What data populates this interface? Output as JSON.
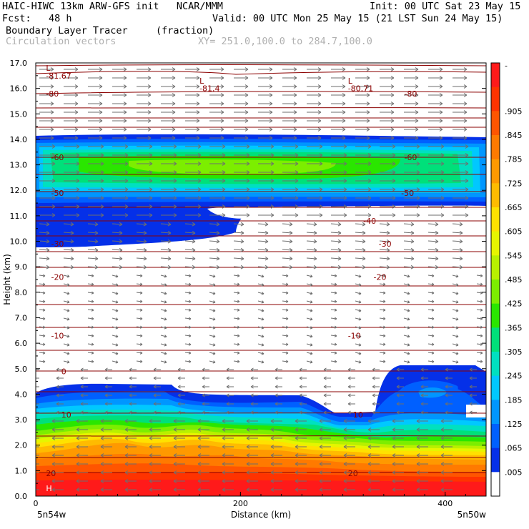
{
  "header": {
    "line1_left": "HAIC-HIWC 13km ARW-GFS init   NCAR/MMM",
    "line1_right": "Init: 00 UTC Sat 23 May 15",
    "line2_left": "Fcst:   48 h",
    "line2_right": "Valid: 00 UTC Mon 25 May 15 (21 LST Sun 24 May 15)",
    "field_name": "Boundary Layer Tracer",
    "field_units": "(fraction)",
    "vector_label": "Circulation vectors",
    "xsection_label": "XY= 251.0,100.0 to 284.7,100.0"
  },
  "chart_data": {
    "type": "heatmap",
    "title": "Boundary Layer Tracer",
    "ylabel": "Height (km)",
    "xlabel": "Distance (km)",
    "xlim": [
      0,
      440
    ],
    "ylim": [
      0,
      17
    ],
    "yticks": [
      "0.0",
      "1.0",
      "2.0",
      "3.0",
      "4.0",
      "5.0",
      "6.0",
      "7.0",
      "8.0",
      "9.0",
      "10.0",
      "11.0",
      "12.0",
      "13.0",
      "14.0",
      "15.0",
      "16.0",
      "17.0"
    ],
    "xticks": [
      "0",
      "200",
      "400"
    ],
    "x_end_labels": {
      "left": "5n54w",
      "right": "5n50w"
    },
    "colorbar": {
      "labels": [
        "-",
        ".905",
        ".845",
        ".785",
        ".725",
        ".665",
        ".605",
        ".545",
        ".485",
        ".425",
        ".365",
        ".305",
        ".245",
        ".185",
        ".125",
        ".065",
        ".005"
      ],
      "colors": [
        "#ff1a1a",
        "#ff3300",
        "#ff5500",
        "#ff7a00",
        "#ff9900",
        "#ffbb00",
        "#ffe100",
        "#e6f500",
        "#b8f000",
        "#7cee00",
        "#2ae600",
        "#00e07a",
        "#00e0c0",
        "#00c8ff",
        "#0096ff",
        "#0060ff",
        "#0530e8",
        "#ffffff"
      ]
    },
    "temperature_contour_labels": [
      {
        "text": "-81.67",
        "x": 10,
        "y": 16.5
      },
      {
        "text": "-80",
        "x": 10,
        "y": 15.8
      },
      {
        "text": "-81.4",
        "x": 160,
        "y": 16.0
      },
      {
        "text": "-80.71",
        "x": 305,
        "y": 16.0
      },
      {
        "text": "-80",
        "x": 360,
        "y": 15.8
      },
      {
        "text": "-60",
        "x": 15,
        "y": 13.3
      },
      {
        "text": "-60",
        "x": 360,
        "y": 13.3
      },
      {
        "text": "-50",
        "x": 15,
        "y": 11.9
      },
      {
        "text": "-50",
        "x": 357,
        "y": 11.9
      },
      {
        "text": "-40",
        "x": 320,
        "y": 10.8
      },
      {
        "text": "-30",
        "x": 15,
        "y": 9.9
      },
      {
        "text": "-30",
        "x": 335,
        "y": 9.9
      },
      {
        "text": "-20",
        "x": 15,
        "y": 8.6
      },
      {
        "text": "-20",
        "x": 330,
        "y": 8.6
      },
      {
        "text": "-10",
        "x": 15,
        "y": 6.3
      },
      {
        "text": "-10",
        "x": 305,
        "y": 6.3
      },
      {
        "text": "0",
        "x": 25,
        "y": 4.9
      },
      {
        "text": "10",
        "x": 25,
        "y": 3.2
      },
      {
        "text": "10",
        "x": 310,
        "y": 3.2
      },
      {
        "text": "20",
        "x": 10,
        "y": 0.9
      },
      {
        "text": "20",
        "x": 305,
        "y": 0.9
      }
    ],
    "low_markers": [
      {
        "text": "L",
        "x": 10,
        "y": 16.8
      },
      {
        "text": "L",
        "x": 160,
        "y": 16.3
      },
      {
        "text": "L",
        "x": 305,
        "y": 16.3
      }
    ],
    "high_marker": {
      "text": "H",
      "x": 10,
      "y": 0.2
    }
  }
}
